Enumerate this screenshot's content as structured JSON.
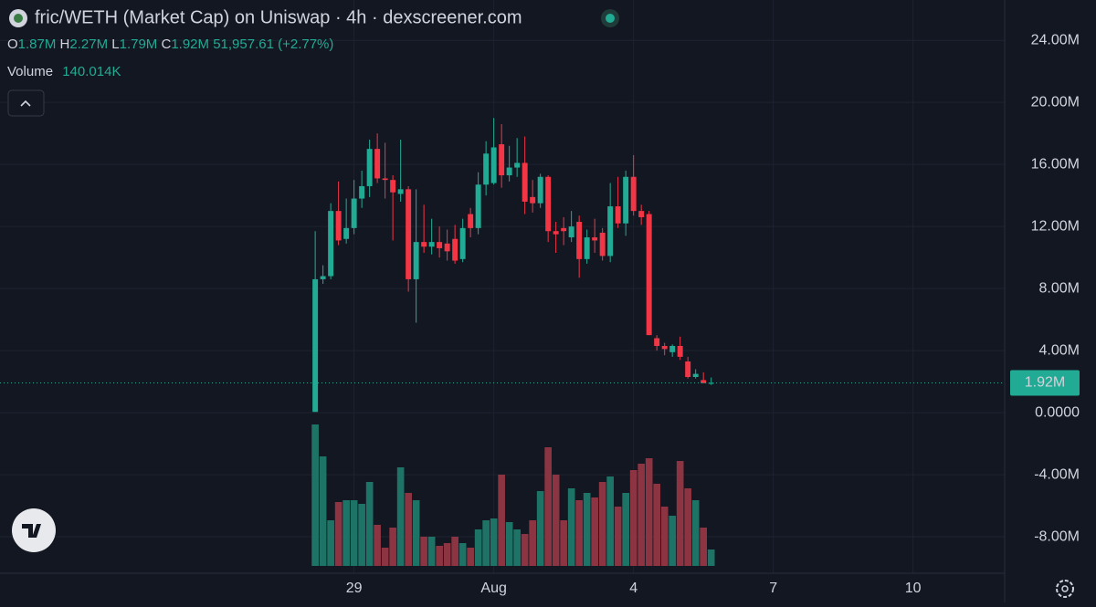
{
  "chart_data": {
    "type": "candlestick",
    "title": "fric/WETH (Market Cap) on Uniswap · 4h · dexscreener.com",
    "header": {
      "o_key": "O",
      "o": "1.87M",
      "h_key": "H",
      "h": "2.27M",
      "l_key": "L",
      "l": "1.79M",
      "c_key": "C",
      "c": "1.92M",
      "change": "51,957.61 (+2.77%)",
      "volume_key": "Volume",
      "volume": "140.014K"
    },
    "last_price_label": "1.92M",
    "x": [
      0,
      1,
      2,
      3,
      4,
      5,
      6,
      7,
      8,
      9,
      10,
      11,
      12,
      13,
      14,
      15,
      16,
      17,
      18,
      19,
      20,
      21,
      22,
      23,
      24,
      25,
      26,
      27,
      28,
      29,
      30,
      31,
      32,
      33,
      34,
      35,
      36,
      37,
      38,
      39,
      40,
      41,
      42,
      43,
      44,
      45,
      46,
      47,
      48,
      49,
      50,
      51
    ],
    "open": [
      50000.0,
      8600000.0,
      8800000.0,
      13000000.0,
      11200000.0,
      11900000.0,
      13800000.0,
      14600000.0,
      17000000.0,
      15100000.0,
      15000000.0,
      14100000.0,
      14400000.0,
      8600000.0,
      11000000.0,
      10700000.0,
      11000000.0,
      10900000.0,
      11200000.0,
      9900000.0,
      12800000.0,
      11900000.0,
      14700000.0,
      14800000.0,
      17300000.0,
      15300000.0,
      15800000.0,
      16100000.0,
      13900000.0,
      13500000.0,
      15200000.0,
      11700000.0,
      11900000.0,
      11300000.0,
      12300000.0,
      9900000.0,
      11300000.0,
      11600000.0,
      10100000.0,
      13300000.0,
      12200000.0,
      15200000.0,
      13000000.0,
      12800000.0,
      4800000.0,
      4300000.0,
      3900000.0,
      4300000.0,
      3300000.0,
      2300000.0,
      2100000.0,
      1870000.0
    ],
    "high": [
      11700000.0,
      9500000.0,
      13500000.0,
      14900000.0,
      13800000.0,
      15000000.0,
      15600000.0,
      17600000.0,
      18000000.0,
      17400000.0,
      15300000.0,
      17600000.0,
      14600000.0,
      14400000.0,
      13400000.0,
      12500000.0,
      12000000.0,
      11800000.0,
      12100000.0,
      12500000.0,
      13200000.0,
      15500000.0,
      17500000.0,
      19000000.0,
      18600000.0,
      17200000.0,
      17700000.0,
      17800000.0,
      15000000.0,
      15400000.0,
      15300000.0,
      12300000.0,
      12600000.0,
      13000000.0,
      12700000.0,
      11800000.0,
      12500000.0,
      11900000.0,
      14800000.0,
      15200000.0,
      15600000.0,
      16600000.0,
      13400000.0,
      13000000.0,
      5000000.0,
      4500000.0,
      4400000.0,
      4900000.0,
      3600000.0,
      2800000.0,
      2600000.0,
      2270000.0
    ],
    "low": [
      50000.0,
      8300000.0,
      8600000.0,
      10800000.0,
      10900000.0,
      11500000.0,
      13200000.0,
      13900000.0,
      14800000.0,
      13800000.0,
      11100000.0,
      13600000.0,
      7800000.0,
      5800000.0,
      10300000.0,
      10200000.0,
      10000000.0,
      9800000.0,
      9600000.0,
      9700000.0,
      11300000.0,
      11500000.0,
      14000000.0,
      14700000.0,
      14500000.0,
      14900000.0,
      15200000.0,
      12800000.0,
      12900000.0,
      13200000.0,
      11000000.0,
      10300000.0,
      10800000.0,
      11000000.0,
      8700000.0,
      9600000.0,
      10300000.0,
      9800000.0,
      9700000.0,
      11900000.0,
      11400000.0,
      12700000.0,
      12100000.0,
      5000000.0,
      4000000.0,
      3700000.0,
      3600000.0,
      3400000.0,
      2200000.0,
      2200000.0,
      1900000.0,
      1790000.0
    ],
    "close": [
      8600000.0,
      8800000.0,
      13000000.0,
      11100000.0,
      11900000.0,
      13800000.0,
      14600000.0,
      17000000.0,
      15100000.0,
      15000000.0,
      14200000.0,
      14400000.0,
      8600000.0,
      11000000.0,
      10700000.0,
      11000000.0,
      10600000.0,
      10400000.0,
      9800000.0,
      11900000.0,
      11900000.0,
      14700000.0,
      16700000.0,
      17100000.0,
      15300000.0,
      15800000.0,
      16100000.0,
      13600000.0,
      13500000.0,
      15200000.0,
      11700000.0,
      11500000.0,
      11700000.0,
      12000000.0,
      9900000.0,
      11300000.0,
      11100000.0,
      10100000.0,
      13300000.0,
      12200000.0,
      15200000.0,
      13000000.0,
      12600000.0,
      5000000.0,
      4300000.0,
      4100000.0,
      4300000.0,
      3600000.0,
      2300000.0,
      2500000.0,
      1900000.0,
      1920000.0
    ],
    "volume": [
      1205600,
      933400,
      388900,
      544500,
      560000,
      560000,
      528900,
      715600,
      350000,
      155600,
      326700,
      840100,
      622200,
      560000,
      248900,
      248900,
      171100,
      194400,
      248900,
      194400,
      155600,
      311100,
      388900,
      404500,
      777900,
      373400,
      311100,
      272300,
      388900,
      637800,
      1011200,
      777900,
      388900,
      661200,
      560000,
      622200,
      583400,
      715600,
      762300,
      505600,
      622200,
      816700,
      871200,
      917900,
      700100,
      505600,
      427800,
      894500,
      661200,
      560000,
      326700,
      140014
    ],
    "xlim": [
      -40.6,
      88.8
    ],
    "xticks": [
      {
        "value": 5,
        "label": "29"
      },
      {
        "value": 23,
        "label": "Aug"
      },
      {
        "value": 41,
        "label": "4"
      },
      {
        "value": 59,
        "label": "7"
      },
      {
        "value": 77,
        "label": "10"
      }
    ],
    "ylim": [
      -10350000.0,
      26600000.0
    ],
    "yticks": [
      {
        "value": 24000000.0,
        "label": "24.00M"
      },
      {
        "value": 20000000.0,
        "label": "20.00M"
      },
      {
        "value": 16000000.0,
        "label": "16.00M"
      },
      {
        "value": 12000000.0,
        "label": "12.00M"
      },
      {
        "value": 8000000.0,
        "label": "8.00M"
      },
      {
        "value": 4000000.0,
        "label": "4.00M"
      },
      {
        "value": 0,
        "label": "0.0000"
      },
      {
        "value": -4000000.0,
        "label": "-4.00M"
      },
      {
        "value": -8000000.0,
        "label": "-8.00M"
      }
    ],
    "grid": true,
    "up_color": "#22ab94",
    "down_color": "#f23645",
    "volume_up_color": "#1d7466",
    "volume_down_color": "#8c3441"
  }
}
